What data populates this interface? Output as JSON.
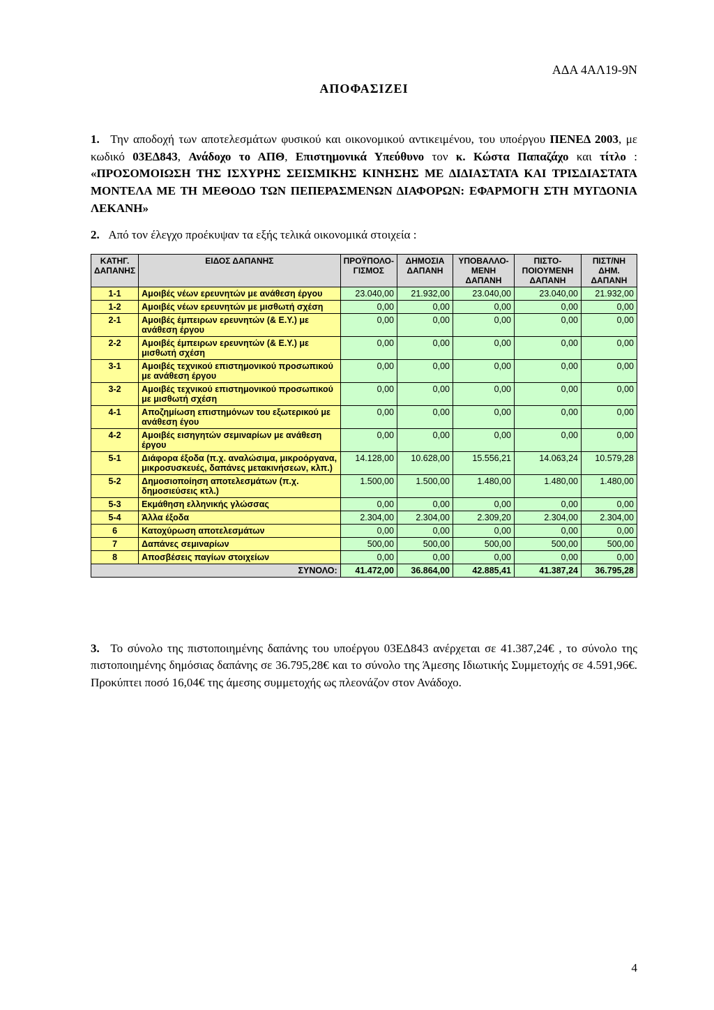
{
  "header": {
    "ada": "ΑΔΑ 4ΑΛ19-9Ν",
    "decision_title": "ΑΠΟΦΑΣΙΖΕΙ"
  },
  "paragraphs": {
    "p1_num": "1.",
    "p1_a": "Την αποδοχή των αποτελεσμάτων φυσικού και οικονομικού αντικειμένου, του υποέργου ",
    "p1_b": "ΠΕΝΕΔ 2003",
    "p1_c": ", με κωδικό ",
    "p1_d": "03ΕΔ843",
    "p1_e": ", ",
    "p1_f": "Ανάδοχο το ΑΠΘ",
    "p1_g": ", ",
    "p1_h": "Επιστημονικά Υπεύθυνο",
    "p1_i": " τον ",
    "p1_j": "κ. Κώστα Παπαζάχο",
    "p1_k": " και ",
    "p1_l": "τίτλο",
    "p1_m": " : ",
    "p1_n": "«ΠΡΟΣΟΜΟΙΩΣΗ ΤΗΣ ΙΣΧΥΡΗΣ ΣΕΙΣΜΙΚΗΣ ΚΙΝΗΣΗΣ ΜΕ ΔΙΔΙΑΣΤΑΤΑ ΚΑΙ ΤΡΙΣΔΙΑΣΤΑΤΑ ΜΟΝΤΕΛΑ ΜΕ ΤΗ ΜΕΘΟΔΟ ΤΩΝ ΠΕΠΕΡΑΣΜΕΝΩΝ ΔΙΑΦΟΡΩΝ: ΕΦΑΡΜΟΓΗ ΣΤΗ ΜΥΓΔΟΝΙΑ ΛΕΚΑΝΗ»",
    "p2_num": "2.",
    "p2_text": "Από τον έλεγχο προέκυψαν τα εξής τελικά οικονομικά στοιχεία :",
    "p3_num": "3.",
    "p3_text": "Το σύνολο της πιστοποιημένης δαπάνης του υποέργου 03ΕΔ843   ανέρχεται σε 41.387,24€ , το σύνολο της πιστοποιημένης δημόσιας δαπάνης σε    36.795,28€  και το σύνολο της Άμεσης Ιδιωτικής Συμμετοχής σε  4.591,96€.  Προκύπτει  ποσό 16,04€ της άμεσης συμμετοχής ως πλεονάζον στον Ανάδοχο."
  },
  "table": {
    "columns": [
      "ΚΑΤΗΓ. ΔΑΠΑΝΗΣ",
      "ΕΙΔΟΣ ΔΑΠΑΝΗΣ",
      "ΠΡΟΫΠΟΛΟ-ΓΙΣΜΟΣ",
      "ΔΗΜΟΣΙΑ ΔΑΠΑΝΗ",
      "ΥΠΟΒΑΛΛΟ-ΜΕΝΗ ΔΑΠΑΝΗ",
      "ΠΙΣΤΟ-ΠΟΙΟΥΜΕΝΗ ΔΑΠΑΝΗ",
      "ΠΙΣΤ/ΝΗ ΔΗΜ. ΔΑΠΑΝΗ"
    ],
    "col_widths": [
      "60px",
      "auto",
      "80px",
      "80px",
      "88px",
      "92px",
      "80px"
    ],
    "rows": [
      {
        "cat": "1-1",
        "desc": "Αμοιβές νέων ερευνητών με ανάθεση έργου",
        "v": [
          "23.040,00",
          "21.932,00",
          "23.040,00",
          "23.040,00",
          "21.932,00"
        ]
      },
      {
        "cat": "1-2",
        "desc": "Αμοιβές νέων ερευνητών με μισθωτή σχέση",
        "v": [
          "0,00",
          "0,00",
          "0,00",
          "0,00",
          "0,00"
        ]
      },
      {
        "cat": "2-1",
        "desc": "Αμοιβές έμπειρων ερευνητών (& Ε.Υ.) με ανάθεση έργου",
        "v": [
          "0,00",
          "0,00",
          "0,00",
          "0,00",
          "0,00"
        ]
      },
      {
        "cat": "2-2",
        "desc": "Αμοιβές έμπειρων ερευνητών (& Ε.Υ.) με μισθωτή σχέση",
        "v": [
          "0,00",
          "0,00",
          "0,00",
          "0,00",
          "0,00"
        ]
      },
      {
        "cat": "3-1",
        "desc": "Αμοιβές τεχνικού επιστημονικού προσωπικού με ανάθεση έργου",
        "v": [
          "0,00",
          "0,00",
          "0,00",
          "0,00",
          "0,00"
        ]
      },
      {
        "cat": "3-2",
        "desc": "Αμοιβές τεχνικού επιστημονικού προσωπικού με μισθωτή σχέση",
        "v": [
          "0,00",
          "0,00",
          "0,00",
          "0,00",
          "0,00"
        ]
      },
      {
        "cat": "4-1",
        "desc": "Αποζημίωση επιστημόνων του εξωτερικού με ανάθεση έγου",
        "v": [
          "0,00",
          "0,00",
          "0,00",
          "0,00",
          "0,00"
        ]
      },
      {
        "cat": "4-2",
        "desc": "Αμοιβές εισηγητών σεμιναρίων με ανάθεση έργου",
        "v": [
          "0,00",
          "0,00",
          "0,00",
          "0,00",
          "0,00"
        ]
      },
      {
        "cat": "5-1",
        "desc": "Διάφορα έξοδα (π.χ. αναλώσιμα, μικροόργανα, μικροσυσκευές, δαπάνες μετακινήσεων, κλπ.)",
        "v": [
          "14.128,00",
          "10.628,00",
          "15.556,21",
          "14.063,24",
          "10.579,28"
        ]
      },
      {
        "cat": "5-2",
        "desc": "Δημοσιοποίηση αποτελεσμάτων (π.χ. δημοσιεύσεις κτλ.)",
        "v": [
          "1.500,00",
          "1.500,00",
          "1.480,00",
          "1.480,00",
          "1.480,00"
        ]
      },
      {
        "cat": "5-3",
        "desc": "Εκμάθηση ελληνικής γλώσσας",
        "v": [
          "0,00",
          "0,00",
          "0,00",
          "0,00",
          "0,00"
        ]
      },
      {
        "cat": "5-4",
        "desc": "Άλλα έξοδα",
        "v": [
          "2.304,00",
          "2.304,00",
          "2.309,20",
          "2.304,00",
          "2.304,00"
        ]
      },
      {
        "cat": "6",
        "desc": "Κατοχύρωση αποτελεσμάτων",
        "v": [
          "0,00",
          "0,00",
          "0,00",
          "0,00",
          "0,00"
        ]
      },
      {
        "cat": "7",
        "desc": "Δαπάνες σεμιναρίων",
        "v": [
          "500,00",
          "500,00",
          "500,00",
          "500,00",
          "500,00"
        ]
      },
      {
        "cat": "8",
        "desc": "Αποσβέσεις παγίων στοιχείων",
        "v": [
          "0,00",
          "0,00",
          "0,00",
          "0,00",
          "0,00"
        ]
      }
    ],
    "total_label": "ΣΥΝΟΛΟ:",
    "total_values": [
      "41.472,00",
      "36.864,00",
      "42.885,41",
      "41.387,24",
      "36.795,28"
    ]
  },
  "colors": {
    "header_bg": "#d9d9d9",
    "cat_bg": "#ffff99",
    "num_bg": "#ccffcc",
    "border": "#000000",
    "page_bg": "#ffffff"
  },
  "page_number": "4"
}
